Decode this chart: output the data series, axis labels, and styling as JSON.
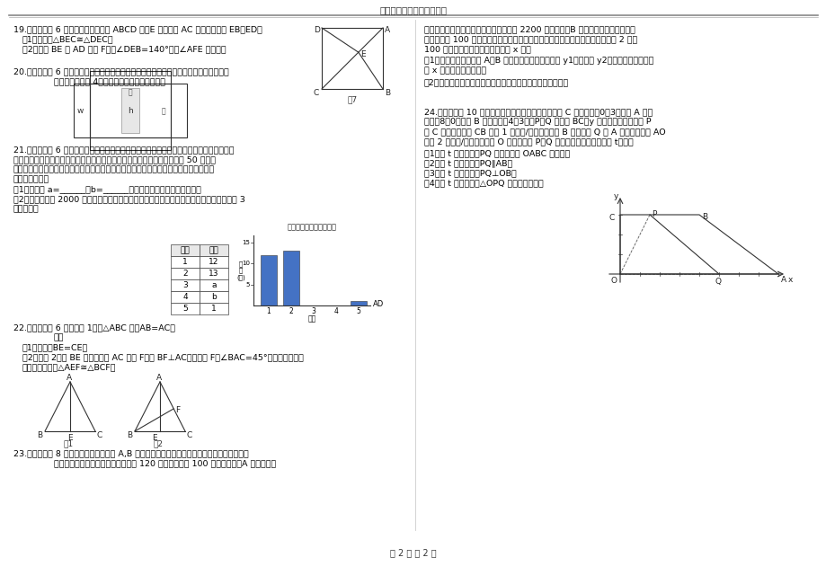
{
  "title": "株洲市外国语学校考试试卷",
  "footer": "第 2 页 共 2 页",
  "bg_color": "#ffffff",
  "q19_num": "19.",
  "q19_score": "（本题满分 6 分）",
  "q19_text1": "如图，在正方形 ABCD 中，E 为对角线 AC 上一点，连接 EB、ED。",
  "q19_sub1": "（1）求证：△BEC≅△DEC；",
  "q19_sub2": "（2）延长 BE 交 AD 于点 F，若∠DEB=140°，求∠AFE 的度数。",
  "q19_figlabel": "图7",
  "q20_num": "20.",
  "q20_score": "（本题满分 6 分）",
  "q20_text1": "某药业集团生产的某种药品包装盒的侧面展开如图所示。如果长方体",
  "q20_text2": "盒子的长比宽是 4，求这种药品包装盒的体积。",
  "q21_num": "21.",
  "q21_score": "（本题满分 6 分）",
  "q21_text1": "为了创建书香校园，切实引导学生多读书、乐读书、会读书、谈好书，",
  "q21_text2": "某校开展好书伴我成长的读书活动，为了解全校学生读书情况，随机调查了 50 名学生",
  "q21_text3": "读书的册数，并将全部调查结果绘制成两幅不完整的统计图表。请根据图表提供的信息，",
  "q21_text4": "解答下列问题：",
  "q21_sub1": "（1）表中的 a=______，b=______，请你把条形统计图补充完整；",
  "q21_sub2": "（2）若该校共有 2000 名学生，请你根据样本数据，估计该校学生在本次活动中读书不少于 3",
  "q21_sub3": "册的人数。",
  "q21_table_heads": [
    "册数",
    "人数"
  ],
  "q21_table_data": [
    [
      "1",
      "12"
    ],
    [
      "2",
      "13"
    ],
    [
      "3",
      "a"
    ],
    [
      "4",
      "b"
    ],
    [
      "5",
      "1"
    ]
  ],
  "q21_bar_values": [
    12,
    13,
    0,
    0,
    1
  ],
  "q22_num": "22.",
  "q22_score": "（本题满分 6 分）",
  "q22_text1": "如图 1，在△ABC 中，AB=AC，",
  "q22_text2": "上。",
  "q22_sub1": "（1）求证：BE=CE；",
  "q22_sub2": "（2）如图 2，若 BE 的延长线交 AC 于点 F，且 BF⊥AC，垂足为 F，∠BAC=45°，原题设其它条",
  "q22_sub3": "件不变，求证：△AEF≅△BCF。",
  "q23_num": "23.",
  "q23_score": "（本题满分 8 分）",
  "q23_text1": "圣诞节学校需要从 A,B 两公司采购一批演出服装，经了解：两家公司生产",
  "q23_text2": "的这款服装的单价相同，即男装每套 120 元，女装每套 100 元。经协商：A 公司的优惠",
  "q23r_text1": "条件是：全部服装打七折，但收方需承担 2200 元的运费；B 公司的优惠条件是：男女",
  "q23r_text2": "装均按每套 100 元再打八折，公司承担运费。参加演出的女生人数是男生人数的 2 倍少",
  "q23r_text3": "100 人，如果设参加演出的男生有 x 人，",
  "q23r_sub1": "（1）分别写出学校购买 A、B 两公司服装所付的总费用 y1（元）和 y2（元）与参演男生人",
  "q23r_sub2": "数 x 之间的函数关系式；",
  "q23r_sub3": "（2）问：该学校购买哪家公司的服装比较合算？请说明理由。",
  "q24_num": "24.",
  "q24_score": "（本题满分 10 分）",
  "q24_text1": "如图，在平面直角坐标系中，点 C 的坐标是（0，3），点 A 的坐",
  "q24_text2": "标是（8，0），点 B 的坐标是（4，3），P、Q 分别是 BC、y 轴上的两个动点，点 P",
  "q24_text3": "从 C 出发，在线段 CB 上以 1 个单位/秒的速度向点 B 移动，点 Q 从 A 出发，在线段 AO",
  "q24_text4": "上以 2 个单位/秒的速度向点 O 移动，设点 P、Q 同时出发，运动的时间为 t（秒）",
  "q24_sub1": "（1）当 t 为何值时，PQ 平行四边形 OABC 的面积？",
  "q24_sub2": "（2）当 t 为何值时，PQ∥AB？",
  "q24_sub3": "（3）当 t 为何值时，PQ⊥OB？",
  "q24_sub4": "（4）当 t 为何值时，△OPQ 是等腰三角形？"
}
